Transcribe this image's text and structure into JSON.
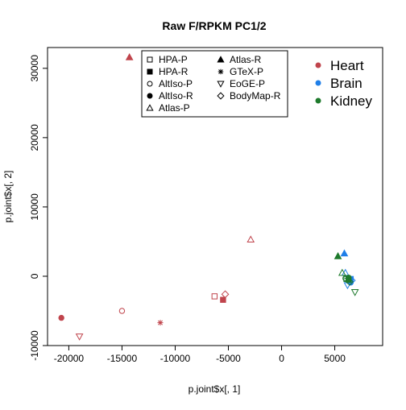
{
  "chart_data": {
    "type": "scatter",
    "title": "Raw F/RPKM PC1/2",
    "xlabel": "p.joint$x[, 1]",
    "ylabel": "p.joint$x[, 2]",
    "xlim": [
      -22000,
      9500
    ],
    "ylim": [
      -10000,
      33000
    ],
    "x_ticks": [
      -20000,
      -15000,
      -10000,
      -5000,
      0,
      5000
    ],
    "x_tick_labels": [
      "-20000",
      "-15000",
      "-10000",
      "-5000",
      "0",
      "5000"
    ],
    "y_ticks": [
      -10000,
      0,
      10000,
      20000,
      30000
    ],
    "y_tick_labels": [
      "-10000",
      "0",
      "10000",
      "20000",
      "30000"
    ],
    "grid": false,
    "shape_legend": {
      "placement": "top-center",
      "entries": [
        {
          "label": "HPA-P",
          "shape": "square-open"
        },
        {
          "label": "HPA-R",
          "shape": "square-filled"
        },
        {
          "label": "AltIso-P",
          "shape": "circle-open"
        },
        {
          "label": "AltIso-R",
          "shape": "circle-filled"
        },
        {
          "label": "Atlas-P",
          "shape": "triangle-open"
        },
        {
          "label": "Atlas-R",
          "shape": "triangle-filled"
        },
        {
          "label": "GTeX-P",
          "shape": "asterisk"
        },
        {
          "label": "EoGE-P",
          "shape": "triangle-down-open"
        },
        {
          "label": "BodyMap-R",
          "shape": "diamond-open"
        }
      ]
    },
    "color_legend": {
      "placement": "top-right",
      "entries": [
        {
          "label": "Heart",
          "color": "#c0444c"
        },
        {
          "label": "Brain",
          "color": "#1f7fe8"
        },
        {
          "label": "Kidney",
          "color": "#1e7a2c"
        }
      ]
    },
    "points": [
      {
        "x": -14300,
        "y": 31600,
        "shape": "triangle-filled",
        "color": "#c0444c"
      },
      {
        "x": -20700,
        "y": -6000,
        "shape": "circle-filled",
        "color": "#c0444c"
      },
      {
        "x": -15000,
        "y": -5000,
        "shape": "circle-open",
        "color": "#c0444c"
      },
      {
        "x": -19000,
        "y": -8700,
        "shape": "triangle-down-open",
        "color": "#c0444c"
      },
      {
        "x": -11400,
        "y": -6700,
        "shape": "asterisk",
        "color": "#c0444c"
      },
      {
        "x": -6300,
        "y": -2900,
        "shape": "square-open",
        "color": "#c0444c"
      },
      {
        "x": -5500,
        "y": -3400,
        "shape": "square-filled",
        "color": "#c0444c"
      },
      {
        "x": -5300,
        "y": -2600,
        "shape": "diamond-open",
        "color": "#c0444c"
      },
      {
        "x": -2900,
        "y": 5300,
        "shape": "triangle-open",
        "color": "#c0444c"
      },
      {
        "x": 5900,
        "y": 3300,
        "shape": "triangle-filled",
        "color": "#1f7fe8"
      },
      {
        "x": 6100,
        "y": -300,
        "shape": "square-open",
        "color": "#1f7fe8"
      },
      {
        "x": 6500,
        "y": -400,
        "shape": "square-filled",
        "color": "#1f7fe8"
      },
      {
        "x": 6300,
        "y": -700,
        "shape": "circle-open",
        "color": "#1f7fe8"
      },
      {
        "x": 6500,
        "y": -900,
        "shape": "circle-filled",
        "color": "#1f7fe8"
      },
      {
        "x": 6000,
        "y": 500,
        "shape": "triangle-open",
        "color": "#1f7fe8"
      },
      {
        "x": 6400,
        "y": -500,
        "shape": "asterisk",
        "color": "#1f7fe8"
      },
      {
        "x": 6200,
        "y": -1300,
        "shape": "triangle-down-open",
        "color": "#1f7fe8"
      },
      {
        "x": 6600,
        "y": -600,
        "shape": "diamond-open",
        "color": "#1f7fe8"
      },
      {
        "x": 5300,
        "y": 2900,
        "shape": "triangle-filled",
        "color": "#1e7a2c"
      },
      {
        "x": 6100,
        "y": -400,
        "shape": "square-open",
        "color": "#1e7a2c"
      },
      {
        "x": 6300,
        "y": -500,
        "shape": "square-filled",
        "color": "#1e7a2c"
      },
      {
        "x": 6000,
        "y": -300,
        "shape": "circle-open",
        "color": "#1e7a2c"
      },
      {
        "x": 6300,
        "y": -200,
        "shape": "circle-filled",
        "color": "#1e7a2c"
      },
      {
        "x": 5700,
        "y": 500,
        "shape": "triangle-open",
        "color": "#1e7a2c"
      },
      {
        "x": 6200,
        "y": -300,
        "shape": "asterisk",
        "color": "#1e7a2c"
      },
      {
        "x": 6900,
        "y": -2300,
        "shape": "triangle-down-open",
        "color": "#1e7a2c"
      },
      {
        "x": 6400,
        "y": -800,
        "shape": "diamond-open",
        "color": "#1e7a2c"
      }
    ]
  }
}
